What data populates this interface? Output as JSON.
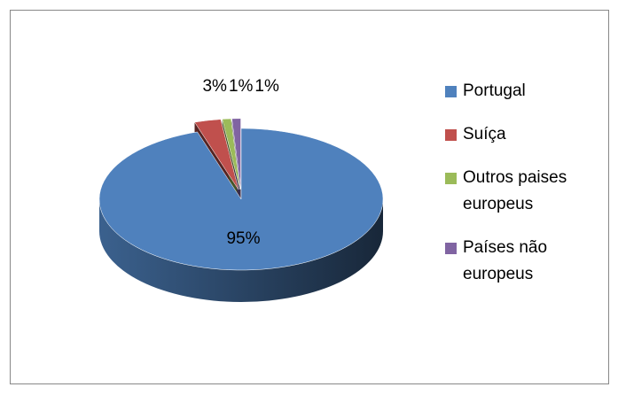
{
  "chart_data": {
    "type": "pie3d",
    "categories": [
      "Portugal",
      "Suíça",
      "Outros paises europeus",
      "Países não europeus"
    ],
    "values": [
      95,
      3,
      1,
      1
    ],
    "value_labels": [
      "95%",
      "3%",
      "1%",
      "1%"
    ],
    "colors": [
      "#4f81bd",
      "#c0504d",
      "#9bbb59",
      "#8064a2"
    ],
    "legend": "right"
  }
}
